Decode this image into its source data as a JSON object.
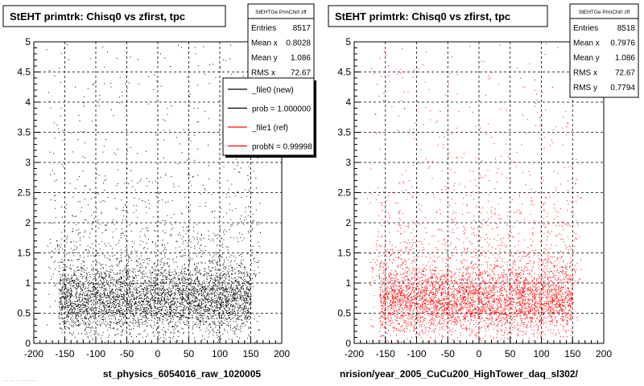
{
  "panels": [
    {
      "title": "StEHT primtrk: Chisq0 vs zfirst, tpc",
      "xlabel": "st_physics_6054016_raw_1020005",
      "stats": {
        "name": "StEHTGe PrmChi0 zff",
        "rows": [
          {
            "label": "Entries",
            "value": "8517"
          },
          {
            "label": "Mean x",
            "value": "0.8028"
          },
          {
            "label": "Mean y",
            "value": "1.086"
          },
          {
            "label": "RMS x",
            "value": "72.67"
          }
        ]
      },
      "legend": [
        {
          "label": "_file0 (new)",
          "color": "#000000"
        },
        {
          "label": "prob = 1.000000",
          "color": "#000000"
        },
        {
          "label": "_file1 (ref)",
          "color": "#ff0000"
        },
        {
          "label": "probN = 0.99998",
          "color": "#ff0000"
        }
      ],
      "marker_color": "#000000"
    },
    {
      "title": "StEHT primtrk: Chisq0 vs zfirst, tpc",
      "xlabel": "nrision/year_2005_CuCu200_HighTower_daq_sl302/",
      "stats": {
        "name": "StEHTGe PrmChi0 zff",
        "rows": [
          {
            "label": "Entries",
            "value": "8518"
          },
          {
            "label": "Mean x",
            "value": "0.7976"
          },
          {
            "label": "Mean y",
            "value": "1.086"
          },
          {
            "label": "RMS x",
            "value": "72.67"
          },
          {
            "label": "RMS y",
            "value": "0.7794"
          }
        ]
      },
      "legend": [],
      "marker_color": "#ff0000"
    }
  ],
  "footer_text": "... ... .. ... .......",
  "chart_data": [
    {
      "type": "scatter",
      "title": "StEHT primtrk: Chisq0 vs zfirst, tpc",
      "xlabel": "st_physics_6054016_raw_1020005",
      "ylabel": "",
      "xlim": [
        -200,
        200
      ],
      "ylim": [
        0,
        5
      ],
      "xticks": [
        -200,
        -150,
        -100,
        -50,
        0,
        50,
        100,
        150,
        200
      ],
      "yticks": [
        0,
        0.5,
        1,
        1.5,
        2,
        2.5,
        3,
        3.5,
        4,
        4.5,
        5
      ],
      "grid": true,
      "series": [
        {
          "name": "_file0 (new)",
          "color": "#000000",
          "entries": 8517,
          "points": [
            [
              -160,
              1.2
            ],
            [
              -150,
              0.6
            ],
            [
              -140,
              0.9
            ],
            [
              -130,
              1.4
            ],
            [
              -120,
              0.7
            ],
            [
              -110,
              1.0
            ],
            [
              -100,
              0.5
            ],
            [
              -90,
              1.1
            ],
            [
              -80,
              0.8
            ],
            [
              -70,
              0.6
            ],
            [
              -60,
              0.9
            ],
            [
              -50,
              0.7
            ],
            [
              -40,
              1.0
            ],
            [
              -30,
              0.8
            ],
            [
              -20,
              0.6
            ],
            [
              -10,
              0.9
            ],
            [
              0,
              0.7
            ],
            [
              10,
              1.0
            ],
            [
              20,
              0.8
            ],
            [
              30,
              0.6
            ],
            [
              40,
              0.9
            ],
            [
              50,
              0.7
            ],
            [
              60,
              1.0
            ],
            [
              70,
              0.8
            ],
            [
              80,
              0.6
            ],
            [
              90,
              0.9
            ],
            [
              100,
              1.1
            ],
            [
              110,
              0.7
            ],
            [
              120,
              0.9
            ],
            [
              130,
              1.3
            ],
            [
              140,
              0.8
            ],
            [
              150,
              1.0
            ],
            [
              -100,
              2.5
            ],
            [
              -50,
              3.2
            ],
            [
              0,
              2.1
            ],
            [
              50,
              2.8
            ],
            [
              100,
              1.9
            ],
            [
              -120,
              4.0
            ],
            [
              20,
              4.6
            ],
            [
              140,
              3.5
            ]
          ]
        }
      ]
    },
    {
      "type": "scatter",
      "title": "StEHT primtrk: Chisq0 vs zfirst, tpc",
      "xlabel": "nrision/year_2005_CuCu200_HighTower_daq_sl302/",
      "ylabel": "",
      "xlim": [
        -200,
        200
      ],
      "ylim": [
        0,
        5
      ],
      "xticks": [
        -200,
        -150,
        -100,
        -50,
        0,
        50,
        100,
        150,
        200
      ],
      "yticks": [
        0,
        0.5,
        1,
        1.5,
        2,
        2.5,
        3,
        3.5,
        4,
        4.5,
        5
      ],
      "grid": true,
      "series": [
        {
          "name": "_file1 (ref)",
          "color": "#ff0000",
          "entries": 8518,
          "points": [
            [
              -160,
              1.1
            ],
            [
              -150,
              0.7
            ],
            [
              -140,
              0.9
            ],
            [
              -130,
              1.3
            ],
            [
              -120,
              0.6
            ],
            [
              -110,
              1.0
            ],
            [
              -100,
              0.5
            ],
            [
              -90,
              1.2
            ],
            [
              -80,
              0.8
            ],
            [
              -70,
              0.6
            ],
            [
              -60,
              0.9
            ],
            [
              -50,
              0.7
            ],
            [
              -40,
              1.0
            ],
            [
              -30,
              0.8
            ],
            [
              -20,
              0.6
            ],
            [
              -10,
              0.9
            ],
            [
              0,
              0.7
            ],
            [
              10,
              1.0
            ],
            [
              20,
              0.8
            ],
            [
              30,
              0.6
            ],
            [
              40,
              0.9
            ],
            [
              50,
              0.7
            ],
            [
              60,
              1.0
            ],
            [
              70,
              0.8
            ],
            [
              80,
              0.6
            ],
            [
              90,
              0.9
            ],
            [
              100,
              1.1
            ],
            [
              110,
              0.7
            ],
            [
              120,
              0.9
            ],
            [
              130,
              1.2
            ],
            [
              140,
              0.8
            ],
            [
              150,
              1.0
            ],
            [
              -100,
              2.6
            ],
            [
              -50,
              3.1
            ],
            [
              0,
              2.2
            ],
            [
              50,
              2.7
            ],
            [
              100,
              2.0
            ],
            [
              -120,
              3.9
            ],
            [
              20,
              4.5
            ],
            [
              140,
              3.6
            ]
          ]
        }
      ]
    }
  ]
}
